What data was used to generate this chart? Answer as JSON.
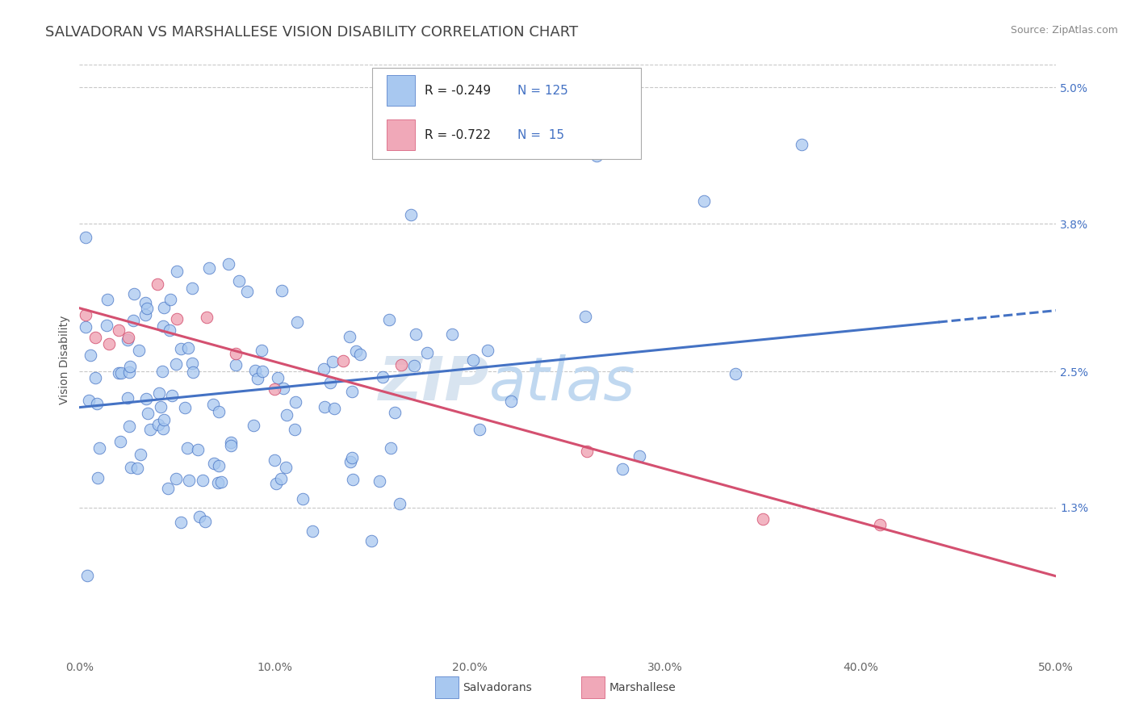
{
  "title": "SALVADORAN VS MARSHALLESE VISION DISABILITY CORRELATION CHART",
  "source_text": "Source: ZipAtlas.com",
  "ylabel": "Vision Disability",
  "x_min": 0.0,
  "x_max": 0.5,
  "y_min": 0.0,
  "y_max": 0.052,
  "x_ticks": [
    0.0,
    0.1,
    0.2,
    0.3,
    0.4,
    0.5
  ],
  "x_tick_labels": [
    "0.0%",
    "10.0%",
    "20.0%",
    "30.0%",
    "40.0%",
    "50.0%"
  ],
  "y_ticks": [
    0.013,
    0.025,
    0.038,
    0.05
  ],
  "y_tick_labels": [
    "1.3%",
    "2.5%",
    "3.8%",
    "5.0%"
  ],
  "salvadoran_color": "#a8c8f0",
  "marshallese_color": "#f0a8b8",
  "salvadoran_line_color": "#4472c4",
  "marshallese_line_color": "#d45070",
  "background_color": "#ffffff",
  "grid_color": "#c8c8c8",
  "title_color": "#444444",
  "title_fontsize": 13,
  "axis_label_fontsize": 10,
  "tick_fontsize": 10,
  "watermark_zip": "ZIP",
  "watermark_atlas": "atlas",
  "legend_entries": [
    {
      "r": "-0.249",
      "n": "125"
    },
    {
      "r": "-0.722",
      "n": " 15"
    }
  ],
  "bottom_legend": [
    "Salvadorans",
    "Marshallese"
  ]
}
